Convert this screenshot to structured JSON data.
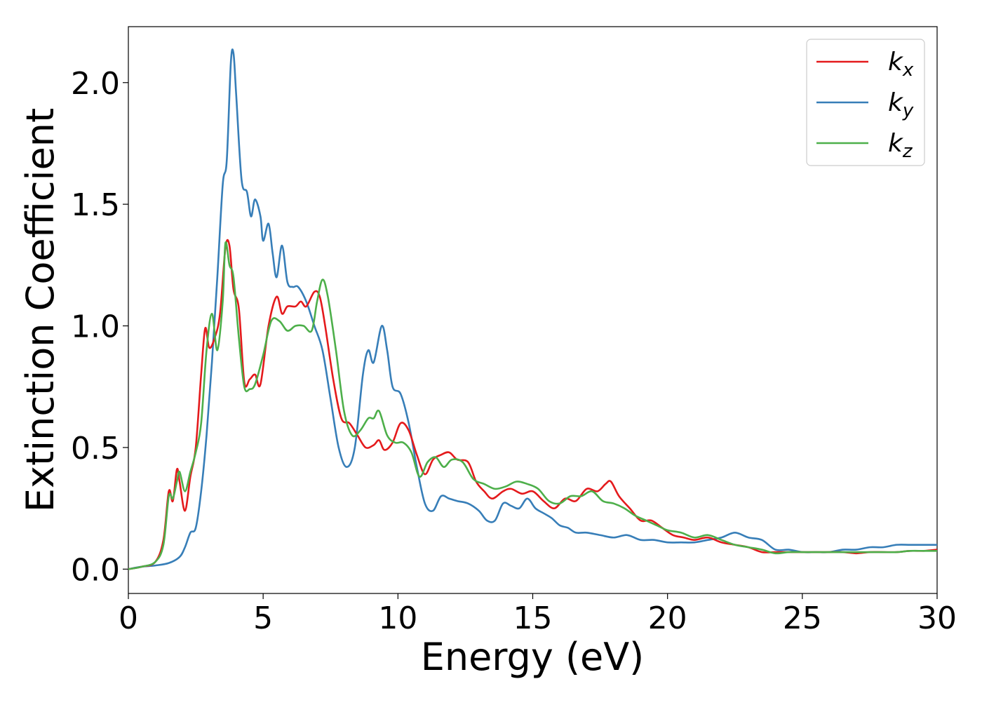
{
  "chart_data": {
    "type": "line",
    "xlabel": "Energy (eV)",
    "ylabel": "Extinction Coefficient",
    "xlim": [
      0,
      30
    ],
    "ylim": [
      -0.1,
      2.23
    ],
    "xticks": [
      0,
      5,
      10,
      15,
      20,
      25,
      30
    ],
    "xtick_labels": [
      "0",
      "5",
      "10",
      "15",
      "20",
      "25",
      "30"
    ],
    "yticks": [
      0.0,
      0.5,
      1.0,
      1.5,
      2.0
    ],
    "ytick_labels": [
      "0.0",
      "0.5",
      "1.0",
      "1.5",
      "2.0"
    ],
    "grid": false,
    "legend_position": "top-right",
    "series": [
      {
        "name": "k",
        "subscript": "x",
        "color": "#e41a1c",
        "points": [
          [
            0,
            0
          ],
          [
            0.5,
            0.01
          ],
          [
            1.0,
            0.03
          ],
          [
            1.3,
            0.12
          ],
          [
            1.5,
            0.32
          ],
          [
            1.65,
            0.28
          ],
          [
            1.8,
            0.41
          ],
          [
            1.9,
            0.36
          ],
          [
            2.1,
            0.24
          ],
          [
            2.3,
            0.38
          ],
          [
            2.5,
            0.5
          ],
          [
            2.7,
            0.8
          ],
          [
            2.85,
            0.99
          ],
          [
            3.0,
            0.91
          ],
          [
            3.2,
            0.95
          ],
          [
            3.4,
            1.05
          ],
          [
            3.6,
            1.32
          ],
          [
            3.75,
            1.33
          ],
          [
            3.9,
            1.15
          ],
          [
            4.1,
            1.07
          ],
          [
            4.3,
            0.77
          ],
          [
            4.5,
            0.78
          ],
          [
            4.7,
            0.8
          ],
          [
            4.9,
            0.76
          ],
          [
            5.2,
            1.0
          ],
          [
            5.5,
            1.12
          ],
          [
            5.7,
            1.05
          ],
          [
            5.9,
            1.08
          ],
          [
            6.2,
            1.08
          ],
          [
            6.4,
            1.1
          ],
          [
            6.6,
            1.08
          ],
          [
            6.9,
            1.14
          ],
          [
            7.1,
            1.12
          ],
          [
            7.3,
            1.0
          ],
          [
            7.6,
            0.78
          ],
          [
            7.9,
            0.62
          ],
          [
            8.2,
            0.6
          ],
          [
            8.5,
            0.55
          ],
          [
            8.8,
            0.5
          ],
          [
            9.1,
            0.51
          ],
          [
            9.3,
            0.53
          ],
          [
            9.5,
            0.49
          ],
          [
            9.8,
            0.52
          ],
          [
            10.1,
            0.6
          ],
          [
            10.4,
            0.57
          ],
          [
            10.7,
            0.47
          ],
          [
            11.0,
            0.39
          ],
          [
            11.3,
            0.45
          ],
          [
            11.6,
            0.47
          ],
          [
            11.9,
            0.48
          ],
          [
            12.2,
            0.45
          ],
          [
            12.6,
            0.44
          ],
          [
            12.9,
            0.36
          ],
          [
            13.2,
            0.32
          ],
          [
            13.5,
            0.29
          ],
          [
            13.9,
            0.32
          ],
          [
            14.2,
            0.33
          ],
          [
            14.6,
            0.31
          ],
          [
            15.0,
            0.32
          ],
          [
            15.4,
            0.28
          ],
          [
            15.8,
            0.25
          ],
          [
            16.2,
            0.29
          ],
          [
            16.6,
            0.28
          ],
          [
            17.0,
            0.33
          ],
          [
            17.4,
            0.32
          ],
          [
            17.7,
            0.35
          ],
          [
            17.9,
            0.36
          ],
          [
            18.2,
            0.3
          ],
          [
            18.6,
            0.25
          ],
          [
            19.0,
            0.2
          ],
          [
            19.4,
            0.2
          ],
          [
            19.8,
            0.17
          ],
          [
            20.2,
            0.14
          ],
          [
            20.6,
            0.13
          ],
          [
            21.0,
            0.12
          ],
          [
            21.5,
            0.13
          ],
          [
            22.0,
            0.11
          ],
          [
            22.5,
            0.1
          ],
          [
            23.0,
            0.09
          ],
          [
            23.5,
            0.07
          ],
          [
            24.0,
            0.07
          ],
          [
            24.5,
            0.07
          ],
          [
            25.0,
            0.07
          ],
          [
            25.5,
            0.07
          ],
          [
            26.0,
            0.07
          ],
          [
            26.5,
            0.07
          ],
          [
            27.0,
            0.065
          ],
          [
            27.5,
            0.07
          ],
          [
            28.0,
            0.07
          ],
          [
            28.5,
            0.07
          ],
          [
            29.0,
            0.075
          ],
          [
            29.5,
            0.075
          ],
          [
            30.0,
            0.08
          ]
        ]
      },
      {
        "name": "k",
        "subscript": "y",
        "color": "#377eb8",
        "points": [
          [
            0,
            0
          ],
          [
            0.5,
            0.01
          ],
          [
            1.0,
            0.015
          ],
          [
            1.5,
            0.025
          ],
          [
            1.9,
            0.05
          ],
          [
            2.1,
            0.09
          ],
          [
            2.3,
            0.15
          ],
          [
            2.5,
            0.17
          ],
          [
            2.7,
            0.32
          ],
          [
            2.9,
            0.55
          ],
          [
            3.1,
            0.85
          ],
          [
            3.3,
            1.2
          ],
          [
            3.5,
            1.58
          ],
          [
            3.65,
            1.68
          ],
          [
            3.8,
            2.08
          ],
          [
            3.9,
            2.12
          ],
          [
            4.0,
            1.95
          ],
          [
            4.2,
            1.6
          ],
          [
            4.4,
            1.55
          ],
          [
            4.55,
            1.45
          ],
          [
            4.7,
            1.52
          ],
          [
            4.9,
            1.45
          ],
          [
            5.0,
            1.35
          ],
          [
            5.2,
            1.42
          ],
          [
            5.35,
            1.3
          ],
          [
            5.5,
            1.2
          ],
          [
            5.7,
            1.33
          ],
          [
            5.9,
            1.18
          ],
          [
            6.1,
            1.16
          ],
          [
            6.3,
            1.16
          ],
          [
            6.6,
            1.1
          ],
          [
            6.9,
            1.0
          ],
          [
            7.2,
            0.9
          ],
          [
            7.5,
            0.7
          ],
          [
            7.8,
            0.5
          ],
          [
            8.1,
            0.42
          ],
          [
            8.4,
            0.5
          ],
          [
            8.7,
            0.8
          ],
          [
            8.9,
            0.9
          ],
          [
            9.1,
            0.85
          ],
          [
            9.4,
            1.0
          ],
          [
            9.6,
            0.9
          ],
          [
            9.8,
            0.75
          ],
          [
            10.1,
            0.72
          ],
          [
            10.4,
            0.6
          ],
          [
            10.7,
            0.42
          ],
          [
            11.0,
            0.27
          ],
          [
            11.3,
            0.24
          ],
          [
            11.6,
            0.3
          ],
          [
            11.9,
            0.29
          ],
          [
            12.2,
            0.28
          ],
          [
            12.6,
            0.27
          ],
          [
            13.0,
            0.24
          ],
          [
            13.3,
            0.2
          ],
          [
            13.6,
            0.2
          ],
          [
            13.9,
            0.27
          ],
          [
            14.2,
            0.26
          ],
          [
            14.5,
            0.25
          ],
          [
            14.8,
            0.29
          ],
          [
            15.1,
            0.25
          ],
          [
            15.4,
            0.23
          ],
          [
            15.7,
            0.21
          ],
          [
            16.0,
            0.18
          ],
          [
            16.3,
            0.17
          ],
          [
            16.6,
            0.15
          ],
          [
            17.0,
            0.15
          ],
          [
            17.5,
            0.14
          ],
          [
            18.0,
            0.13
          ],
          [
            18.5,
            0.14
          ],
          [
            19.0,
            0.12
          ],
          [
            19.5,
            0.12
          ],
          [
            20.0,
            0.11
          ],
          [
            20.5,
            0.11
          ],
          [
            21.0,
            0.11
          ],
          [
            21.5,
            0.12
          ],
          [
            22.0,
            0.13
          ],
          [
            22.5,
            0.15
          ],
          [
            23.0,
            0.13
          ],
          [
            23.5,
            0.12
          ],
          [
            24.0,
            0.08
          ],
          [
            24.5,
            0.08
          ],
          [
            25.0,
            0.07
          ],
          [
            25.5,
            0.07
          ],
          [
            26.0,
            0.07
          ],
          [
            26.5,
            0.08
          ],
          [
            27.0,
            0.08
          ],
          [
            27.5,
            0.09
          ],
          [
            28.0,
            0.09
          ],
          [
            28.5,
            0.1
          ],
          [
            29.0,
            0.1
          ],
          [
            29.5,
            0.1
          ],
          [
            30.0,
            0.1
          ]
        ]
      },
      {
        "name": "k",
        "subscript": "z",
        "color": "#4daf4a",
        "points": [
          [
            0,
            0
          ],
          [
            0.5,
            0.01
          ],
          [
            1.0,
            0.03
          ],
          [
            1.3,
            0.1
          ],
          [
            1.5,
            0.3
          ],
          [
            1.65,
            0.29
          ],
          [
            1.8,
            0.36
          ],
          [
            1.9,
            0.4
          ],
          [
            2.1,
            0.32
          ],
          [
            2.3,
            0.4
          ],
          [
            2.5,
            0.48
          ],
          [
            2.7,
            0.6
          ],
          [
            2.9,
            0.9
          ],
          [
            3.1,
            1.05
          ],
          [
            3.3,
            0.9
          ],
          [
            3.5,
            1.1
          ],
          [
            3.6,
            1.34
          ],
          [
            3.75,
            1.25
          ],
          [
            3.9,
            1.2
          ],
          [
            4.1,
            0.95
          ],
          [
            4.3,
            0.75
          ],
          [
            4.5,
            0.74
          ],
          [
            4.7,
            0.76
          ],
          [
            5.0,
            0.88
          ],
          [
            5.3,
            1.02
          ],
          [
            5.6,
            1.02
          ],
          [
            5.9,
            0.98
          ],
          [
            6.2,
            1.0
          ],
          [
            6.5,
            1.0
          ],
          [
            6.8,
            0.98
          ],
          [
            7.0,
            1.1
          ],
          [
            7.2,
            1.19
          ],
          [
            7.4,
            1.12
          ],
          [
            7.7,
            0.9
          ],
          [
            8.0,
            0.65
          ],
          [
            8.3,
            0.55
          ],
          [
            8.6,
            0.57
          ],
          [
            8.9,
            0.62
          ],
          [
            9.1,
            0.62
          ],
          [
            9.3,
            0.65
          ],
          [
            9.6,
            0.55
          ],
          [
            9.9,
            0.52
          ],
          [
            10.2,
            0.52
          ],
          [
            10.5,
            0.48
          ],
          [
            10.8,
            0.38
          ],
          [
            11.1,
            0.44
          ],
          [
            11.4,
            0.46
          ],
          [
            11.7,
            0.42
          ],
          [
            12.0,
            0.45
          ],
          [
            12.4,
            0.44
          ],
          [
            12.8,
            0.37
          ],
          [
            13.2,
            0.35
          ],
          [
            13.6,
            0.33
          ],
          [
            14.0,
            0.34
          ],
          [
            14.4,
            0.36
          ],
          [
            14.8,
            0.35
          ],
          [
            15.2,
            0.33
          ],
          [
            15.6,
            0.28
          ],
          [
            16.0,
            0.27
          ],
          [
            16.4,
            0.3
          ],
          [
            16.8,
            0.3
          ],
          [
            17.2,
            0.32
          ],
          [
            17.6,
            0.28
          ],
          [
            18.0,
            0.27
          ],
          [
            18.4,
            0.25
          ],
          [
            18.8,
            0.22
          ],
          [
            19.2,
            0.2
          ],
          [
            19.6,
            0.18
          ],
          [
            20.0,
            0.16
          ],
          [
            20.5,
            0.15
          ],
          [
            21.0,
            0.13
          ],
          [
            21.5,
            0.14
          ],
          [
            22.0,
            0.12
          ],
          [
            22.5,
            0.1
          ],
          [
            23.0,
            0.09
          ],
          [
            23.5,
            0.08
          ],
          [
            24.0,
            0.065
          ],
          [
            24.5,
            0.07
          ],
          [
            25.0,
            0.07
          ],
          [
            25.5,
            0.07
          ],
          [
            26.0,
            0.07
          ],
          [
            26.5,
            0.07
          ],
          [
            27.0,
            0.07
          ],
          [
            27.5,
            0.07
          ],
          [
            28.0,
            0.07
          ],
          [
            28.5,
            0.07
          ],
          [
            29.0,
            0.075
          ],
          [
            29.5,
            0.075
          ],
          [
            30.0,
            0.075
          ]
        ]
      }
    ]
  }
}
